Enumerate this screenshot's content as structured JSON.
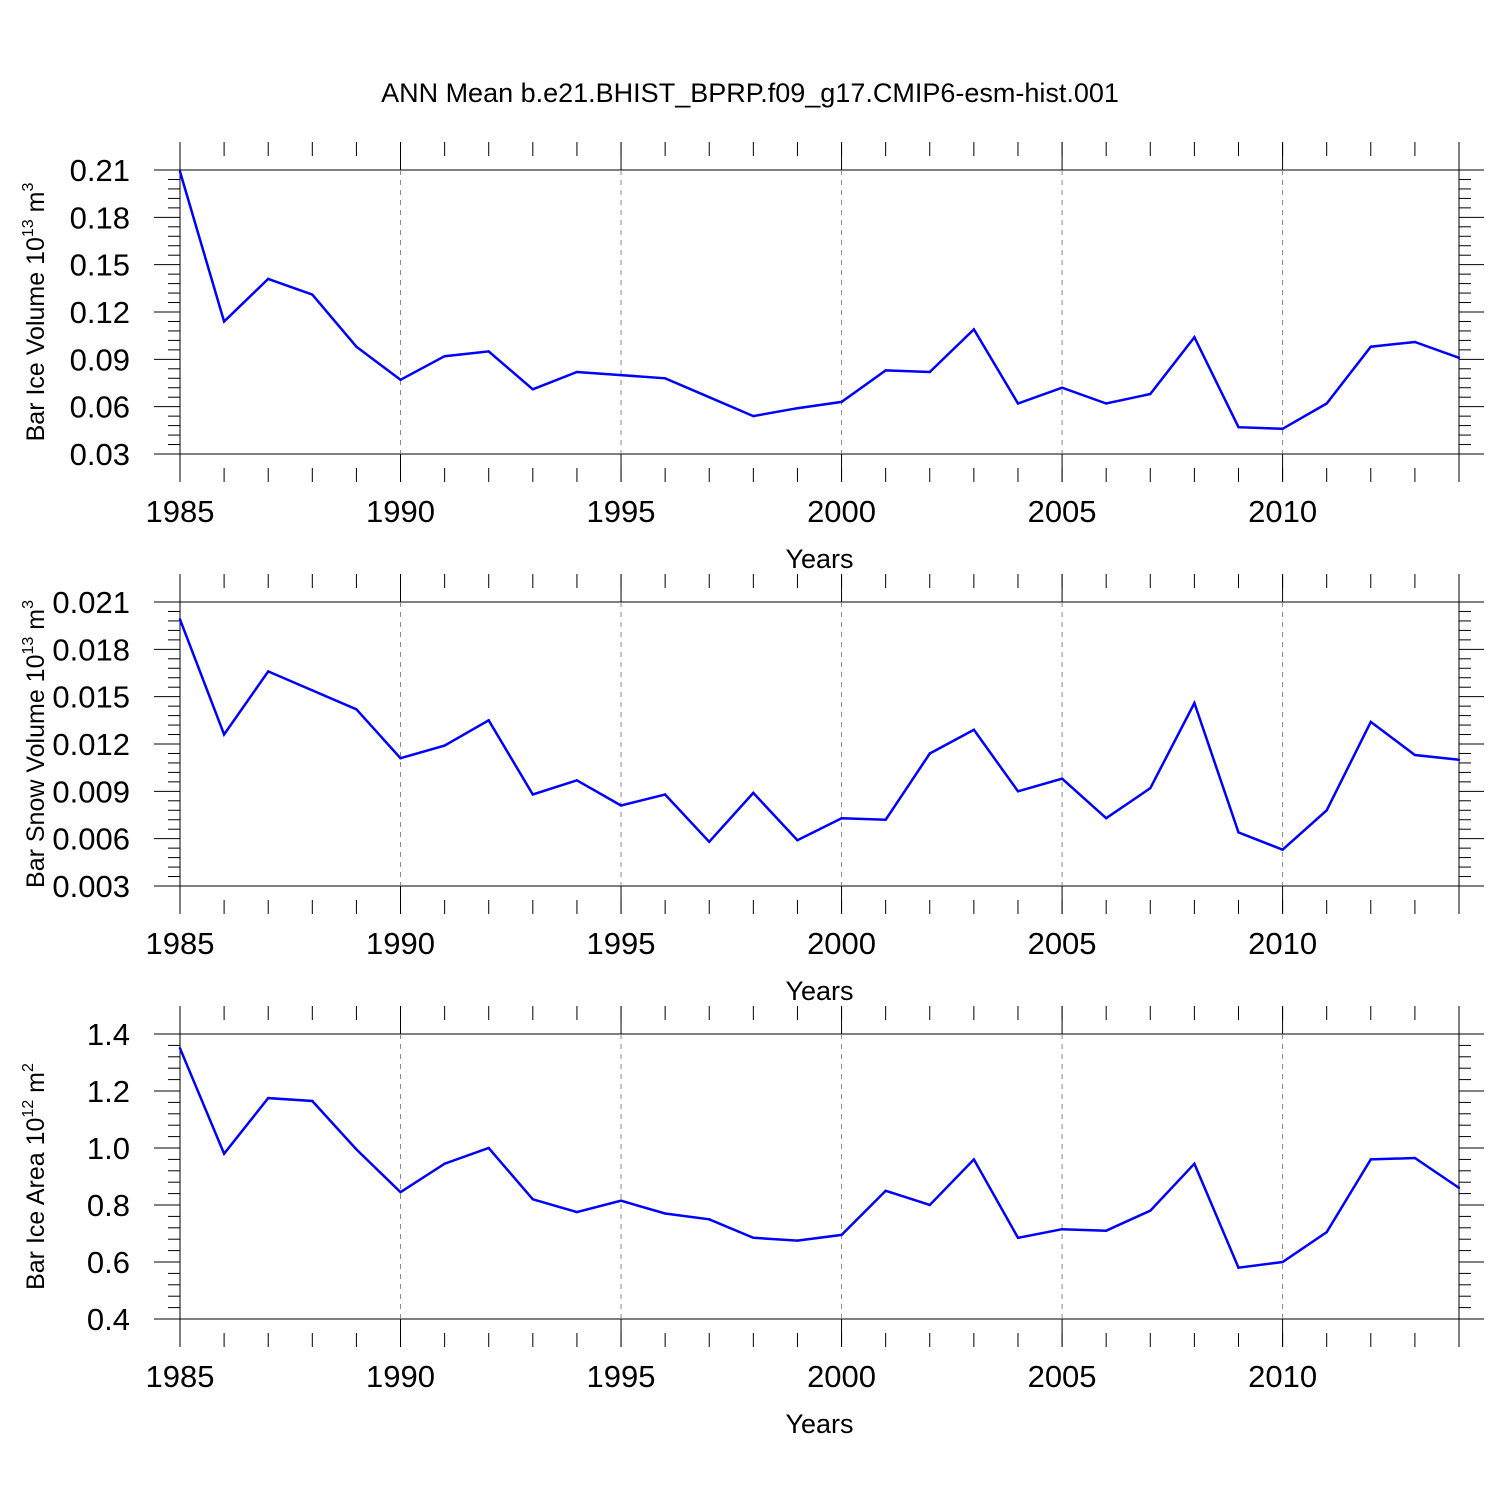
{
  "title": "ANN Mean b.e21.BHIST_BPRP.f09_g17.CMIP6-esm-hist.001",
  "colors": {
    "line": "#0000ff",
    "axis": "#000000",
    "grid": "#888888"
  },
  "chart_data": [
    {
      "type": "line",
      "xlabel": "Years",
      "ylabel": {
        "text": "Bar Ice Volume 10",
        "sup": "13",
        "unit": " m",
        "unit_sup": "3"
      },
      "xlim": [
        1985,
        2014
      ],
      "ylim": [
        0.03,
        0.21
      ],
      "x_ticks": [
        "1985",
        "1990",
        "1995",
        "2000",
        "2005",
        "2010"
      ],
      "y_ticks": [
        "0.03",
        "0.06",
        "0.09",
        "0.12",
        "0.15",
        "0.18",
        "0.21"
      ],
      "x": [
        1985,
        1986,
        1987,
        1988,
        1989,
        1990,
        1991,
        1992,
        1993,
        1994,
        1995,
        1996,
        1997,
        1998,
        1999,
        2000,
        2001,
        2002,
        2003,
        2004,
        2005,
        2006,
        2007,
        2008,
        2009,
        2010,
        2011,
        2012,
        2013,
        2014
      ],
      "series": [
        {
          "values": [
            0.209,
            0.114,
            0.141,
            0.131,
            0.098,
            0.077,
            0.092,
            0.095,
            0.071,
            0.082,
            0.08,
            0.078,
            0.066,
            0.054,
            0.059,
            0.063,
            0.083,
            0.082,
            0.109,
            0.062,
            0.072,
            0.062,
            0.068,
            0.104,
            0.047,
            0.046,
            0.062,
            0.098,
            0.101,
            0.091
          ]
        }
      ]
    },
    {
      "type": "line",
      "xlabel": "Years",
      "ylabel": {
        "text": "Bar Snow Volume 10",
        "sup": "13",
        "unit": " m",
        "unit_sup": "3"
      },
      "xlim": [
        1985,
        2014
      ],
      "ylim": [
        0.003,
        0.021
      ],
      "x_ticks": [
        "1985",
        "1990",
        "1995",
        "2000",
        "2005",
        "2010"
      ],
      "y_ticks": [
        "0.003",
        "0.006",
        "0.009",
        "0.012",
        "0.015",
        "0.018",
        "0.021"
      ],
      "x": [
        1985,
        1986,
        1987,
        1988,
        1989,
        1990,
        1991,
        1992,
        1993,
        1994,
        1995,
        1996,
        1997,
        1998,
        1999,
        2000,
        2001,
        2002,
        2003,
        2004,
        2005,
        2006,
        2007,
        2008,
        2009,
        2010,
        2011,
        2012,
        2013,
        2014
      ],
      "series": [
        {
          "values": [
            0.0199,
            0.0126,
            0.0166,
            0.0154,
            0.0142,
            0.0111,
            0.0119,
            0.0135,
            0.0088,
            0.0097,
            0.0081,
            0.0088,
            0.0058,
            0.0089,
            0.0059,
            0.0073,
            0.0072,
            0.0114,
            0.0129,
            0.009,
            0.0098,
            0.0073,
            0.0092,
            0.0146,
            0.0064,
            0.0053,
            0.0078,
            0.0134,
            0.0113,
            0.011
          ]
        }
      ]
    },
    {
      "type": "line",
      "xlabel": "Years",
      "ylabel": {
        "text": "Bar Ice Area 10",
        "sup": "12",
        "unit": " m",
        "unit_sup": "2"
      },
      "xlim": [
        1985,
        2014
      ],
      "ylim": [
        0.4,
        1.4
      ],
      "x_ticks": [
        "1985",
        "1990",
        "1995",
        "2000",
        "2005",
        "2010"
      ],
      "y_ticks": [
        "0.4",
        "0.6",
        "0.8",
        "1.0",
        "1.2",
        "1.4"
      ],
      "x": [
        1985,
        1986,
        1987,
        1988,
        1989,
        1990,
        1991,
        1992,
        1993,
        1994,
        1995,
        1996,
        1997,
        1998,
        1999,
        2000,
        2001,
        2002,
        2003,
        2004,
        2005,
        2006,
        2007,
        2008,
        2009,
        2010,
        2011,
        2012,
        2013,
        2014
      ],
      "series": [
        {
          "values": [
            1.35,
            0.98,
            1.175,
            1.165,
            0.995,
            0.845,
            0.945,
            1.0,
            0.82,
            0.775,
            0.815,
            0.77,
            0.75,
            0.685,
            0.675,
            0.695,
            0.85,
            0.8,
            0.96,
            0.685,
            0.715,
            0.71,
            0.78,
            0.945,
            0.58,
            0.6,
            0.705,
            0.96,
            0.965,
            0.86
          ]
        }
      ]
    }
  ]
}
